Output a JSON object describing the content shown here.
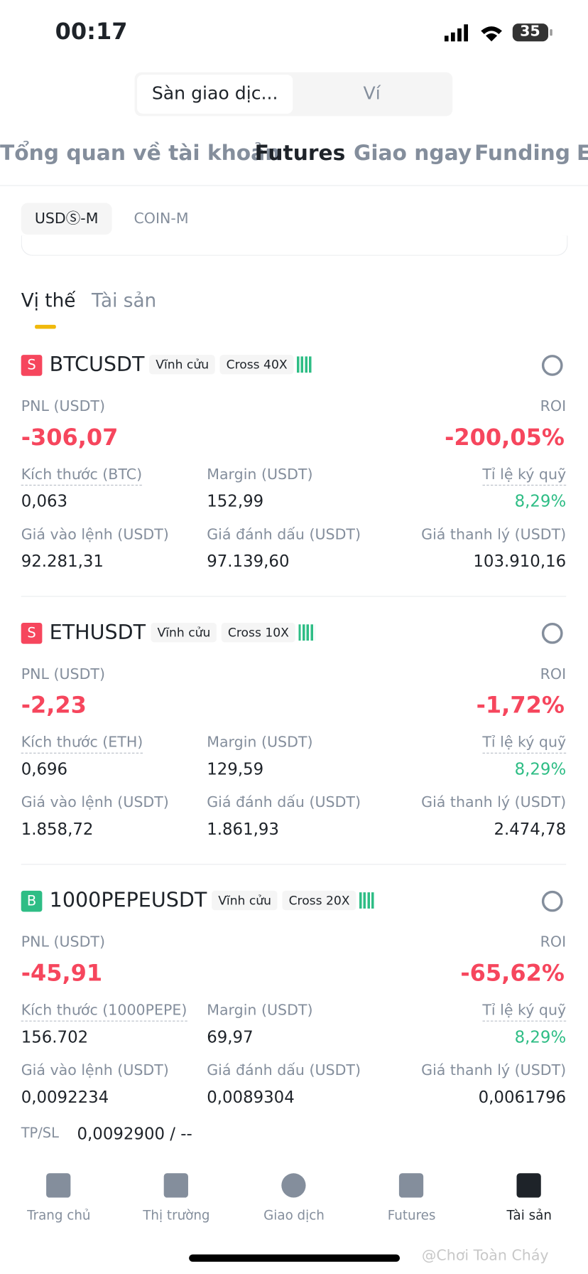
{
  "status_bar": {
    "time": "00:17",
    "battery": "35"
  },
  "segment": {
    "items": [
      "Sàn giao dịc...",
      "Ví"
    ]
  },
  "tabs": [
    "Tổng quan về tài khoản",
    "Futures",
    "Giao ngay",
    "Funding",
    "E"
  ],
  "sub_tabs": [
    "USDⓈ-M",
    "COIN-M"
  ],
  "position_tabs": [
    "Vị thế",
    "Tài sản"
  ],
  "positions": [
    {
      "side": "S",
      "badge_color": "#f6465d",
      "symbol": "BTCUSDT",
      "type": "Vĩnh cửu",
      "leverage": "Cross 40X",
      "pnl_label": "PNL (USDT)",
      "pnl": "-306,07",
      "roi_label": "ROI",
      "roi": "-200,05%",
      "fields": [
        {
          "label": "Kích thước (BTC)",
          "value": "0,063"
        },
        {
          "label": "Margin (USDT)",
          "value": "152,99"
        },
        {
          "label": "Tỉ lệ ký quỹ",
          "value": "8,29%"
        },
        {
          "label": "Giá vào lệnh (USDT)",
          "value": "92.281,31"
        },
        {
          "label": "Giá đánh dấu (USDT)",
          "value": "97.139,60"
        },
        {
          "label": "Giá thanh lý (USDT)",
          "value": "103.910,16"
        }
      ]
    },
    {
      "side": "S",
      "badge_color": "#f6465d",
      "symbol": "ETHUSDT",
      "type": "Vĩnh cửu",
      "leverage": "Cross 10X",
      "pnl_label": "PNL (USDT)",
      "pnl": "-2,23",
      "roi_label": "ROI",
      "roi": "-1,72%",
      "fields": [
        {
          "label": "Kích thước (ETH)",
          "value": "0,696"
        },
        {
          "label": "Margin (USDT)",
          "value": "129,59"
        },
        {
          "label": "Tỉ lệ ký quỹ",
          "value": "8,29%"
        },
        {
          "label": "Giá vào lệnh (USDT)",
          "value": "1.858,72"
        },
        {
          "label": "Giá đánh dấu (USDT)",
          "value": "1.861,93"
        },
        {
          "label": "Giá thanh lý (USDT)",
          "value": "2.474,78"
        }
      ]
    },
    {
      "side": "B",
      "badge_color": "#2ebd85",
      "symbol": "1000PEPEUSDT",
      "type": "Vĩnh cửu",
      "leverage": "Cross 20X",
      "pnl_label": "PNL (USDT)",
      "pnl": "-45,91",
      "roi_label": "ROI",
      "roi": "-65,62%",
      "fields": [
        {
          "label": "Kích thước (1000PEPE)",
          "value": "156.702"
        },
        {
          "label": "Margin (USDT)",
          "value": "69,97"
        },
        {
          "label": "Tỉ lệ ký quỹ",
          "value": "8,29%"
        },
        {
          "label": "Giá vào lệnh (USDT)",
          "value": "0,0092234"
        },
        {
          "label": "Giá đánh dấu (USDT)",
          "value": "0,0089304"
        },
        {
          "label": "Giá thanh lý (USDT)",
          "value": "0,0061796"
        }
      ],
      "tpsl": {
        "label": "TP/SL",
        "value": "0,0092900 / --"
      }
    }
  ],
  "nav": [
    "Trang chủ",
    "Thị trường",
    "Giao dịch",
    "Futures",
    "Tài sản"
  ],
  "watermark": "@Chơi Toàn Cháy"
}
